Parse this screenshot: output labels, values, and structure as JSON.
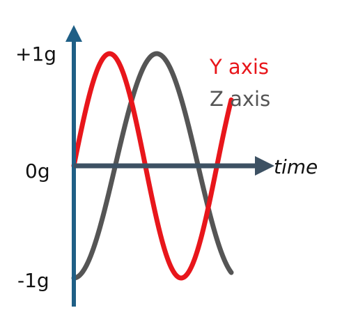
{
  "chart_data": {
    "type": "line",
    "xlabel": "time",
    "ylabel": "",
    "yticks": [
      {
        "label": "+1g",
        "value": 1
      },
      {
        "label": "0g",
        "value": 0
      },
      {
        "label": "-1g",
        "value": -1
      }
    ],
    "ylim": [
      -1,
      1
    ],
    "xlim": [
      0,
      1
    ],
    "grid": false,
    "legend_position": "top-right",
    "series": [
      {
        "name": "Y axis",
        "color": "#e8161b",
        "function": "sine",
        "cycles": 1.1,
        "phase_cycles": 0.0,
        "x_end": 1.0
      },
      {
        "name": "Z axis",
        "color": "#555555",
        "function": "negative-cosine",
        "cycles": 0.95,
        "phase_cycles": 0.0,
        "x_end": 1.0
      }
    ],
    "axis_color": "#1f5f86",
    "time_arrow_color": "#3d5163"
  }
}
